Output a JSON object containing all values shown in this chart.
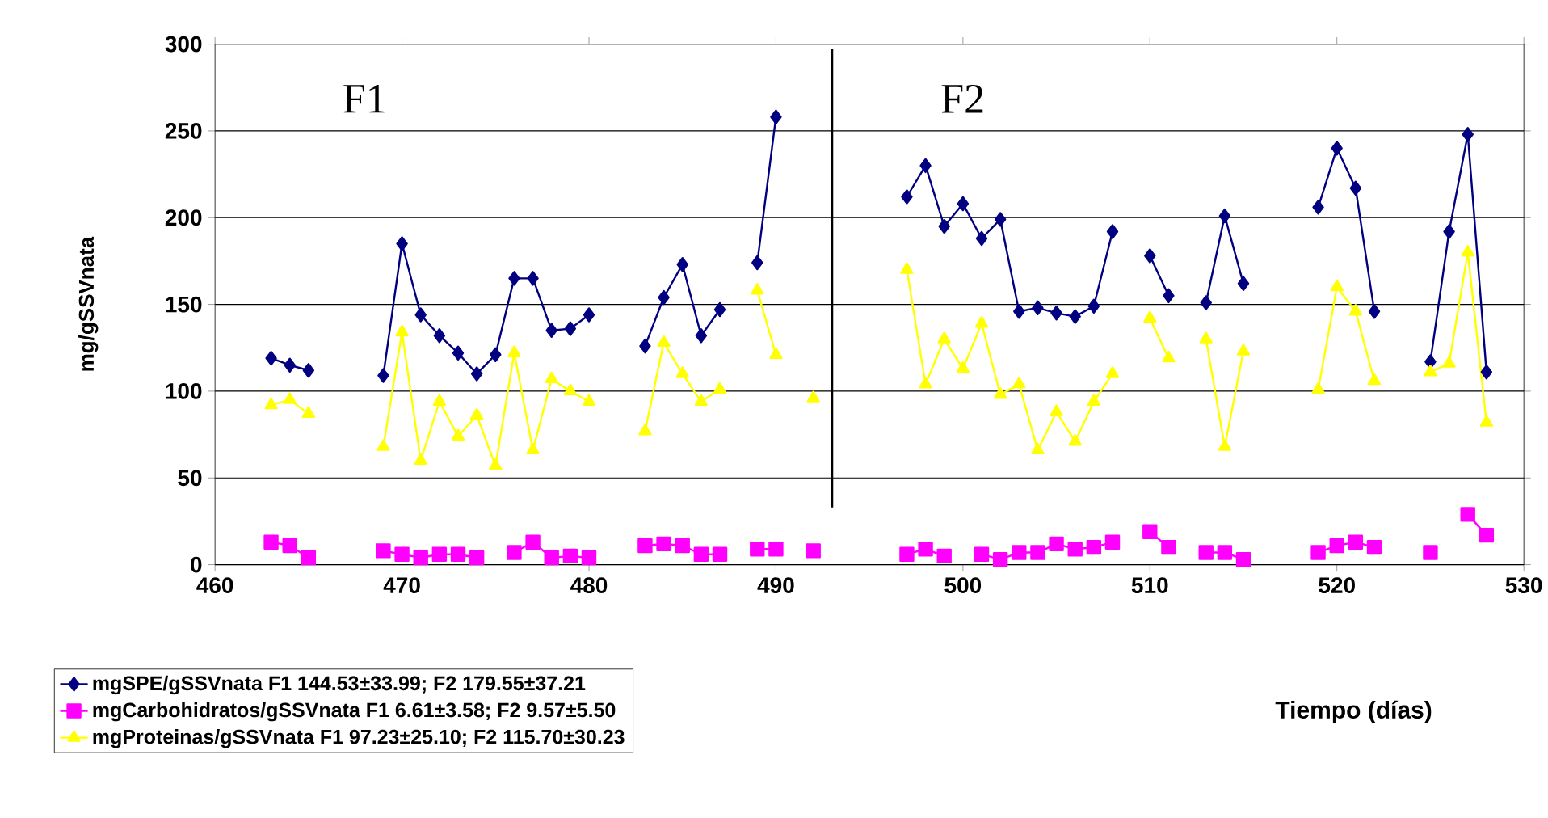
{
  "chart_data": {
    "type": "line",
    "xlabel": "Tiempo (días)",
    "ylabel": "mg/gSSVnata",
    "x": [
      463,
      464,
      465,
      466,
      467,
      468,
      469,
      470,
      471,
      472,
      473,
      474,
      475,
      476,
      477,
      478,
      479,
      480,
      481,
      482,
      483,
      484,
      485,
      486,
      487,
      488,
      489,
      490,
      491,
      492,
      493,
      494,
      495,
      496,
      497,
      498,
      499,
      500,
      501,
      502,
      503,
      504,
      505,
      506,
      507,
      508,
      509,
      510,
      511,
      512,
      513,
      514,
      515,
      516,
      517,
      518,
      519,
      520,
      521,
      522,
      523,
      524,
      525,
      526,
      527,
      528
    ],
    "series": [
      {
        "name": "mgSPE/gSSVnata F1 144.53±33.99; F2 179.55±37.21",
        "color": "#000080",
        "marker": "diamond",
        "values": [
          119,
          115,
          112,
          null,
          null,
          null,
          109,
          185,
          144,
          132,
          122,
          110,
          121,
          165,
          165,
          135,
          136,
          144,
          null,
          null,
          126,
          154,
          173,
          132,
          147,
          null,
          174,
          258,
          null,
          null,
          null,
          null,
          null,
          null,
          212,
          230,
          195,
          208,
          188,
          199,
          146,
          148,
          145,
          143,
          149,
          192,
          null,
          178,
          155,
          null,
          151,
          201,
          162,
          null,
          null,
          null,
          206,
          240,
          217,
          146,
          null,
          null,
          117,
          192,
          248,
          111
        ]
      },
      {
        "name": "mgCarbohidratos/gSSVnata F1 6.61±3.58; F2 9.57±5.50",
        "color": "#ff00ff",
        "marker": "square",
        "values": [
          13,
          11,
          4,
          null,
          null,
          null,
          8,
          6,
          4,
          6,
          6,
          4,
          null,
          7,
          13,
          4,
          5,
          4,
          null,
          null,
          11,
          12,
          11,
          6,
          6,
          null,
          9,
          9,
          null,
          8,
          null,
          null,
          null,
          null,
          6,
          9,
          5,
          null,
          6,
          3,
          7,
          7,
          12,
          9,
          10,
          13,
          null,
          19,
          10,
          null,
          7,
          7,
          3,
          null,
          null,
          null,
          7,
          11,
          13,
          10,
          null,
          null,
          7,
          null,
          29,
          17
        ]
      },
      {
        "name": "mgProteinas/gSSVnata F1 97.23±25.10; F2 115.70±30.23",
        "color": "#ffff00",
        "marker": "triangle",
        "values": [
          92,
          95,
          87,
          null,
          null,
          null,
          68,
          134,
          60,
          94,
          74,
          86,
          57,
          122,
          66,
          107,
          100,
          94,
          null,
          null,
          77,
          128,
          110,
          94,
          101,
          null,
          158,
          121,
          null,
          96,
          null,
          null,
          null,
          null,
          170,
          104,
          130,
          113,
          139,
          98,
          104,
          66,
          88,
          71,
          94,
          110,
          null,
          142,
          119,
          null,
          130,
          68,
          123,
          null,
          null,
          null,
          101,
          160,
          146,
          106,
          null,
          null,
          111,
          116,
          180,
          82
        ]
      }
    ],
    "xlim": [
      460,
      530
    ],
    "xticks": [
      460,
      470,
      480,
      490,
      500,
      510,
      520,
      530
    ],
    "ylim": [
      0,
      300
    ],
    "yticks": [
      0,
      50,
      100,
      150,
      200,
      250,
      300
    ],
    "grid": "y",
    "legend": "bottom left",
    "ref_lines": [
      {
        "axis": "x",
        "value": 493,
        "color": "#000000"
      }
    ],
    "annotations": [
      "F1",
      "F2"
    ]
  }
}
